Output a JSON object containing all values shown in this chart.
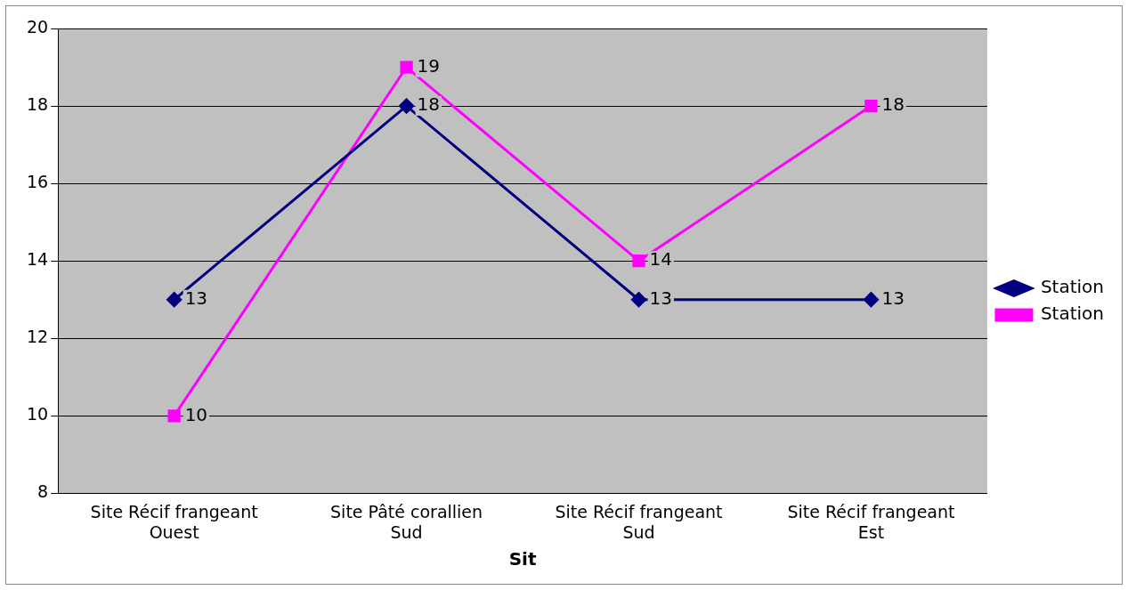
{
  "chart_data": {
    "type": "line",
    "xlabel": "Sit",
    "categories": [
      "Site Récif frangeant Ouest",
      "Site Pâté corallien Sud",
      "Site Récif frangeant Sud",
      "Site Récif frangeant Est"
    ],
    "series": [
      {
        "name": "Station",
        "color": "#000080",
        "marker": "diamond",
        "values": [
          13,
          18,
          13,
          13
        ]
      },
      {
        "name": "Station",
        "color": "#ff00ff",
        "marker": "square",
        "values": [
          10,
          19,
          14,
          18
        ]
      }
    ],
    "ylim": [
      8,
      20
    ],
    "yticks": [
      8,
      10,
      12,
      14,
      16,
      18,
      20
    ],
    "grid": "y",
    "legend": "right",
    "data_labels": true
  }
}
